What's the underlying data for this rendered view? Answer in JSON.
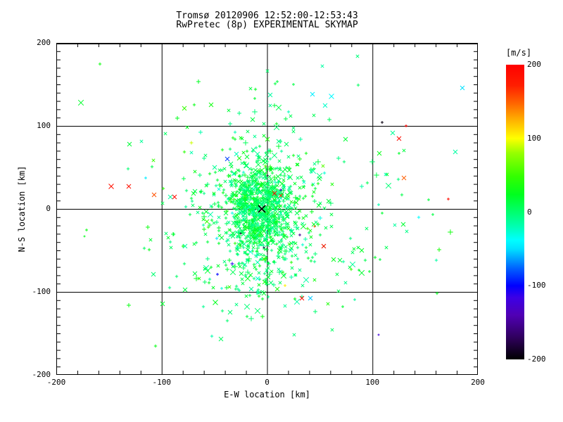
{
  "chart_data": {
    "type": "scatter",
    "title": "Tromsø 20120906 12:52:00-12:53:43",
    "subtitle": "RwPretec (8p) EXPERIMENTAL SKYMAP",
    "xlabel": "E-W location [km]",
    "ylabel": "N-S location [km]",
    "xlim": [
      -200,
      200
    ],
    "ylim": [
      -200,
      200
    ],
    "x_major_ticks": [
      -200,
      -100,
      0,
      100,
      200
    ],
    "y_major_ticks": [
      200,
      100,
      0,
      -100,
      -200
    ],
    "x_tick_labels": [
      "-200",
      "-100",
      "0",
      "100",
      "200"
    ],
    "y_tick_labels": [
      "200",
      "100",
      "0",
      "-100",
      "-200"
    ],
    "x_minor_step": 20,
    "y_minor_step": 10,
    "grid": true,
    "legend_position": "none",
    "colorbar": {
      "label": "[m/s]",
      "min": -200,
      "max": 200,
      "ticks": [
        200,
        100,
        0,
        -100,
        -200
      ],
      "tick_labels": [
        "200",
        "100",
        "0",
        "-100",
        "-200"
      ],
      "stops": [
        [
          0.0,
          "#000000"
        ],
        [
          0.075,
          "#30005e"
        ],
        [
          0.15,
          "#5000b4"
        ],
        [
          0.21,
          "#3c00e6"
        ],
        [
          0.25,
          "#0000ff"
        ],
        [
          0.31,
          "#0064ff"
        ],
        [
          0.375,
          "#00e1ff"
        ],
        [
          0.405,
          "#00ffff"
        ],
        [
          0.45,
          "#00ffb4"
        ],
        [
          0.5,
          "#00ff6e"
        ],
        [
          0.56,
          "#00ff1e"
        ],
        [
          0.62,
          "#32ff00"
        ],
        [
          0.7,
          "#96ff00"
        ],
        [
          0.75,
          "#ffff00"
        ],
        [
          0.81,
          "#ffb400"
        ],
        [
          0.87,
          "#ff6400"
        ],
        [
          0.93,
          "#ff1e00"
        ],
        [
          1.0,
          "#ff0000"
        ]
      ]
    },
    "seed": 1337,
    "clusters": [
      {
        "count": 700,
        "cx": -7,
        "cy": -2,
        "sx": 15,
        "sy": 27,
        "vm": 6,
        "vs": 12
      },
      {
        "count": 400,
        "cx": -8,
        "cy": -8,
        "sx": 30,
        "sy": 48,
        "vm": 8,
        "vs": 15
      },
      {
        "count": 200,
        "cx": -2,
        "cy": -5,
        "sx": 56,
        "sy": 72,
        "vm": 10,
        "vs": 18
      },
      {
        "count": 70,
        "cx": 5,
        "cy": 0,
        "sx": 100,
        "sy": 82,
        "vm": 8,
        "vs": 22
      }
    ],
    "origin_marker": {
      "x": -5,
      "y": 0,
      "symbol": "x",
      "color": "#000000",
      "size": 5
    },
    "outliers": [
      {
        "x": -148,
        "y": 27,
        "v": 185,
        "s": "x",
        "r": 3.5
      },
      {
        "x": -131,
        "y": 27,
        "v": 185,
        "s": "x",
        "r": 3
      },
      {
        "x": -107,
        "y": 17,
        "v": 155,
        "s": "x",
        "r": 3
      },
      {
        "x": -92,
        "y": 14,
        "v": -15,
        "s": "x",
        "r": 3
      },
      {
        "x": -88,
        "y": 14,
        "v": 190,
        "s": "x",
        "r": 3
      },
      {
        "x": -115,
        "y": 37,
        "v": -45,
        "s": "+",
        "r": 2
      },
      {
        "x": 7,
        "y": 19,
        "v": 195,
        "s": "x",
        "r": 3
      },
      {
        "x": 13,
        "y": 16,
        "v": 165,
        "s": "x",
        "r": 2.5
      },
      {
        "x": 125,
        "y": 85,
        "v": 190,
        "s": "x",
        "r": 3
      },
      {
        "x": 132,
        "y": 100,
        "v": 195,
        "s": "+",
        "r": 2
      },
      {
        "x": 130,
        "y": 37,
        "v": 150,
        "s": "x",
        "r": 3
      },
      {
        "x": 109,
        "y": 104,
        "v": -195,
        "s": "+",
        "r": 2
      },
      {
        "x": 172,
        "y": 12,
        "v": 190,
        "s": "+",
        "r": 2
      },
      {
        "x": 33,
        "y": -108,
        "v": 190,
        "s": "x",
        "r": 3
      },
      {
        "x": 41,
        "y": -108,
        "v": -55,
        "s": "x",
        "r": 3
      },
      {
        "x": 17,
        "y": -92,
        "v": 105,
        "s": "+",
        "r": 2
      },
      {
        "x": 54,
        "y": -45,
        "v": 190,
        "s": "x",
        "r": 3
      },
      {
        "x": 185,
        "y": 146,
        "v": -50,
        "s": "x",
        "r": 3
      },
      {
        "x": -33,
        "y": -66,
        "v": -110,
        "s": "+",
        "r": 2.5
      },
      {
        "x": -47,
        "y": -79,
        "v": -100,
        "s": "+",
        "r": 2
      },
      {
        "x": 31,
        "y": -31,
        "v": -150,
        "s": "+",
        "r": 2
      },
      {
        "x": -38,
        "y": 60,
        "v": -85,
        "s": "x",
        "r": 3
      },
      {
        "x": -72,
        "y": 80,
        "v": 90,
        "s": "+",
        "r": 2.5
      },
      {
        "x": 45,
        "y": -21,
        "v": 160,
        "s": "+",
        "r": 1.5
      },
      {
        "x": 13,
        "y": 23,
        "v": -130,
        "s": "+",
        "r": 2
      },
      {
        "x": 0,
        "y": 40,
        "v": -190,
        "s": "+",
        "r": 1.5
      },
      {
        "x": -25,
        "y": -30,
        "v": -185,
        "s": "+",
        "r": 1.5
      },
      {
        "x": -3,
        "y": -47,
        "v": -175,
        "s": "+",
        "r": 1.5
      },
      {
        "x": 125,
        "y": 67,
        "v": 20,
        "s": "+",
        "r": 2
      },
      {
        "x": 153,
        "y": 11,
        "v": 15,
        "s": "+",
        "r": 2
      },
      {
        "x": 106,
        "y": 5,
        "v": -18,
        "s": "+",
        "r": 2
      },
      {
        "x": 157,
        "y": -7,
        "v": 12,
        "s": "+",
        "r": 2
      },
      {
        "x": 129,
        "y": -19,
        "v": 18,
        "s": "x",
        "r": 3
      },
      {
        "x": 107,
        "y": -61,
        "v": 14,
        "s": "+",
        "r": 2
      },
      {
        "x": 90,
        "y": -50,
        "v": 22,
        "s": "x",
        "r": 3
      },
      {
        "x": 63,
        "y": -61,
        "v": 25,
        "s": "x",
        "r": 3
      },
      {
        "x": 87,
        "y": -74,
        "v": 20,
        "s": "+",
        "r": 2
      },
      {
        "x": 97,
        "y": -75,
        "v": 22,
        "s": "+",
        "r": 2
      },
      {
        "x": 72,
        "y": -118,
        "v": 18,
        "s": "+",
        "r": 2
      },
      {
        "x": -49,
        "y": -113,
        "v": 25,
        "s": "x",
        "r": 3.5
      },
      {
        "x": -99,
        "y": -114,
        "v": 20,
        "s": "x",
        "r": 3
      },
      {
        "x": -171,
        "y": -25,
        "v": 30,
        "s": "+",
        "r": 2
      },
      {
        "x": -173,
        "y": -33,
        "v": 25,
        "s": "+",
        "r": 1.5
      },
      {
        "x": 109,
        "y": -5,
        "v": 18,
        "s": "+",
        "r": 2
      },
      {
        "x": 3,
        "y": 137,
        "v": -15,
        "s": "x",
        "r": 3
      },
      {
        "x": 43,
        "y": 138,
        "v": -45,
        "s": "x",
        "r": 3
      },
      {
        "x": 61,
        "y": 136,
        "v": -40,
        "s": "x",
        "r": 3.5
      },
      {
        "x": 55,
        "y": 125,
        "v": -25,
        "s": "x",
        "r": 3
      },
      {
        "x": 10,
        "y": 153,
        "v": 15,
        "s": "+",
        "r": 2
      },
      {
        "x": 25,
        "y": 150,
        "v": 12,
        "s": "+",
        "r": 2
      },
      {
        "x": -12,
        "y": 133,
        "v": 18,
        "s": "+",
        "r": 2
      },
      {
        "x": 83,
        "y": -109,
        "v": -12,
        "s": "+",
        "r": 2
      },
      {
        "x": 106,
        "y": -152,
        "v": -120,
        "s": "+",
        "r": 1.5
      },
      {
        "x": -43,
        "y": -96,
        "v": -30,
        "s": "+",
        "r": 2
      }
    ]
  }
}
